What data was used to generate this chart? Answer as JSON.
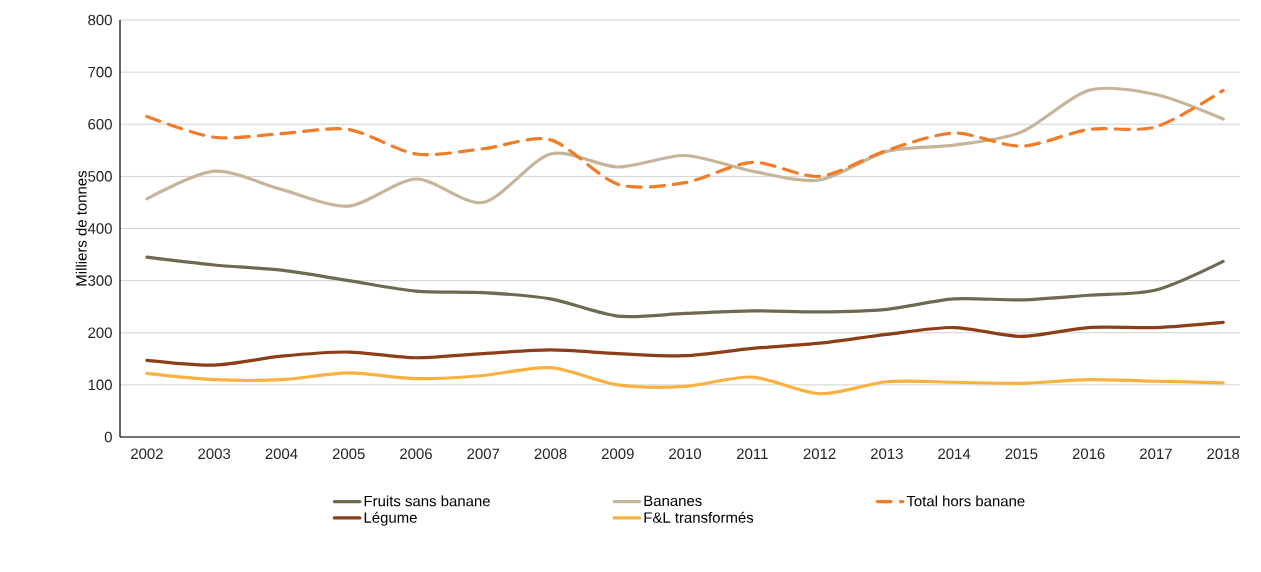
{
  "chart_data": {
    "type": "line",
    "ylabel": "Milliers de tonnes",
    "categories": [
      "2002",
      "2003",
      "2004",
      "2005",
      "2006",
      "2007",
      "2008",
      "2009",
      "2010",
      "2011",
      "2012",
      "2013",
      "2014",
      "2015",
      "2016",
      "2017",
      "2018"
    ],
    "series": [
      {
        "name": "Fruits sans banane",
        "color": "#6e6a50",
        "values": [
          345,
          330,
          320,
          300,
          280,
          277,
          265,
          232,
          237,
          242,
          240,
          245,
          265,
          263,
          272,
          282,
          337
        ]
      },
      {
        "name": "Bananes",
        "color": "#c6b59a",
        "values": [
          457,
          510,
          475,
          443,
          495,
          450,
          543,
          518,
          540,
          510,
          493,
          548,
          560,
          585,
          665,
          657,
          610
        ]
      },
      {
        "name": "Total hors banane",
        "color": "#f07c2a",
        "line_style": "dashed",
        "values": [
          615,
          575,
          582,
          590,
          543,
          553,
          570,
          485,
          488,
          527,
          500,
          550,
          583,
          558,
          590,
          595,
          665
        ]
      },
      {
        "name": "Légume",
        "color": "#8b3e18",
        "values": [
          147,
          138,
          155,
          163,
          152,
          160,
          167,
          160,
          156,
          170,
          180,
          197,
          210,
          193,
          210,
          210,
          220
        ]
      },
      {
        "name": "F&L transformés",
        "color": "#fbb040",
        "values": [
          122,
          110,
          110,
          123,
          112,
          118,
          133,
          100,
          97,
          115,
          83,
          106,
          105,
          103,
          110,
          107,
          104
        ]
      }
    ],
    "ylim": [
      0,
      800
    ],
    "yticks": [
      0,
      100,
      200,
      300,
      400,
      500,
      600,
      700,
      800
    ],
    "grid": "y",
    "legend": "bottom",
    "marker": "none",
    "line_style": "solid"
  }
}
